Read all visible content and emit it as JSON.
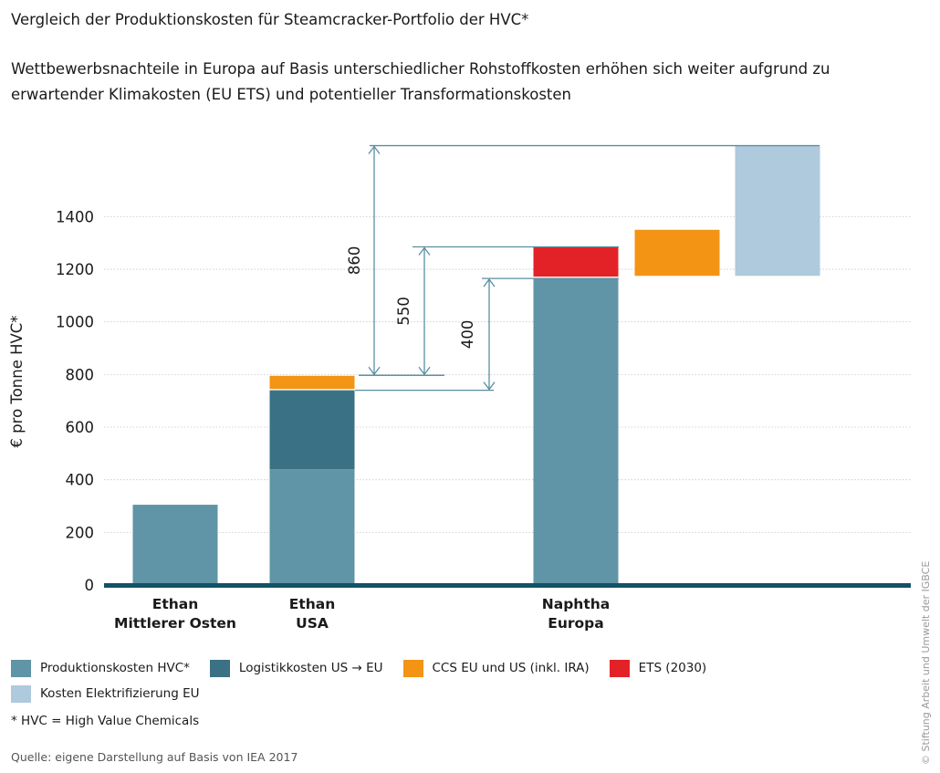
{
  "title": "Vergleich der Produktionskosten für Steamcracker-Portfolio der HVC*",
  "subtitle": "Wettbewerbsnachteile in Europa auf Basis unterschiedlicher Rohstoffkosten erhöhen sich weiter aufgrund zu erwartender Klimakosten (EU ETS) und potentieller Transformationskosten",
  "chart_data": {
    "type": "bar",
    "stacked": true,
    "ylabel": "€ pro Tonne HVC*",
    "ylim": [
      0,
      1700
    ],
    "yticks": [
      0,
      200,
      400,
      600,
      800,
      1000,
      1200,
      1400
    ],
    "grid": true,
    "categories": [
      {
        "line1": "Ethan",
        "line2": "Mittlerer Osten"
      },
      {
        "line1": "Ethan",
        "line2": "USA"
      },
      {
        "line1": "Naphtha",
        "line2": "Europa"
      },
      {
        "line1": "",
        "line2": ""
      },
      {
        "line1": "",
        "line2": ""
      }
    ],
    "segments": [
      {
        "category": 0,
        "series": "production",
        "from": 0,
        "to": 305
      },
      {
        "category": 1,
        "series": "production",
        "from": 0,
        "to": 440
      },
      {
        "category": 1,
        "series": "logistics",
        "from": 440,
        "to": 740
      },
      {
        "category": 1,
        "series": "ccs",
        "from": 745,
        "to": 795
      },
      {
        "category": 2,
        "series": "production",
        "from": 0,
        "to": 1165
      },
      {
        "category": 2,
        "series": "ets",
        "from": 1172,
        "to": 1285
      },
      {
        "category": 3,
        "series": "ccs",
        "from": 1175,
        "to": 1350
      },
      {
        "category": 4,
        "series": "electrification",
        "from": 1175,
        "to": 1670
      }
    ],
    "annotations": [
      {
        "label": "860",
        "from": 797,
        "to": 1670
      },
      {
        "label": "550",
        "from": 797,
        "to": 1285
      },
      {
        "label": "400",
        "from": 740,
        "to": 1165
      }
    ],
    "series": [
      {
        "key": "production",
        "name": "Produktionskosten HVC*",
        "color": "#5f95a6"
      },
      {
        "key": "logistics",
        "name": "Logistikkosten US → EU",
        "color": "#3a7185"
      },
      {
        "key": "ccs",
        "name": "CCS EU und US (inkl. IRA)",
        "color": "#f39414"
      },
      {
        "key": "ets",
        "name": "ETS (2030)",
        "color": "#e32228"
      },
      {
        "key": "electrification",
        "name": "Kosten Elektrifizierung EU",
        "color": "#afc9dd"
      }
    ],
    "baseline_color": "#145266",
    "annotation_color": "#5a8ea0"
  },
  "footnote": "* HVC = High Value Chemicals",
  "source": "Quelle: eigene Darstellung auf Basis von IEA 2017",
  "copyright": "© Stiftung Arbeit und Umwelt der IGBCE"
}
